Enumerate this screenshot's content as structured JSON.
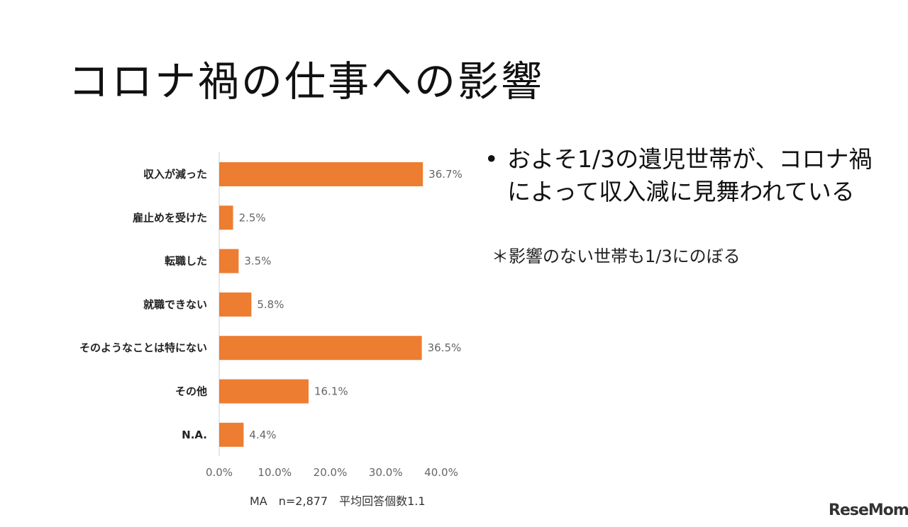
{
  "slide": {
    "title": "コロナ禍の仕事への影響",
    "bullet": "およそ1/3の遺児世帯が、コロナ禍によって収入減に見舞われている",
    "bullet_marker": "•",
    "subnote": "＊影響のない世帯も1/3にのぼる",
    "logo": "ReseMom"
  },
  "chart_data": {
    "type": "bar",
    "orientation": "horizontal",
    "categories": [
      "収入が減った",
      "雇止めを受けた",
      "転職した",
      "就職できない",
      "そのようなことは特にない",
      "その他",
      "N.A."
    ],
    "values": [
      36.7,
      2.5,
      3.5,
      5.8,
      36.5,
      16.1,
      4.4
    ],
    "value_labels": [
      "36.7%",
      "2.5%",
      "3.5%",
      "5.8%",
      "36.5%",
      "16.1%",
      "4.4%"
    ],
    "xlim": [
      0,
      40
    ],
    "x_ticks": [
      "0.0%",
      "10.0%",
      "20.0%",
      "30.0%",
      "40.0%"
    ],
    "bar_color": "#ED7D31",
    "grid": false,
    "note": "MA　n=2,877　平均回答個数1.1"
  }
}
